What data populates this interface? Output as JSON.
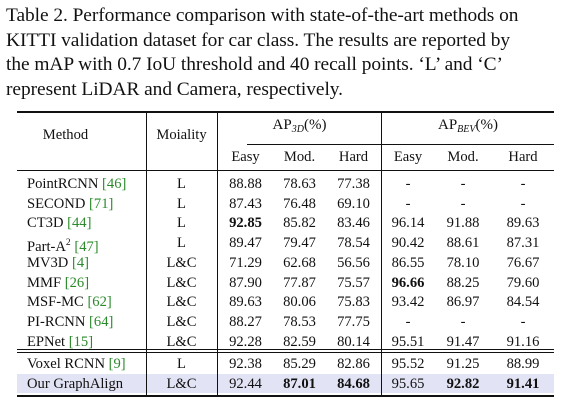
{
  "caption": {
    "lines": [
      "Table 2. Performance comparison with state-of-the-art methods on",
      "KITTI validation dataset for car class. The results are reported by",
      "the mAP with 0.7 IoU threshold and 40 recall points. ‘L’ and ‘C’",
      "represent LiDAR and Camera, respectively."
    ]
  },
  "table": {
    "headers": {
      "method": "Method",
      "modality": "Moiality",
      "ap3d_main": "AP",
      "ap3d_sub": "3D",
      "ap3d_unit": "(%)",
      "apbev_main": "AP",
      "apbev_sub": "BEV",
      "apbev_unit": "(%)",
      "sub_columns": [
        "Easy",
        "Mod.",
        "Hard",
        "Easy",
        "Mod.",
        "Hard"
      ]
    },
    "group1": [
      {
        "name": "PointRCNN",
        "cite": "[46]",
        "modality": "L",
        "values": [
          "88.88",
          "78.63",
          "77.38",
          "-",
          "-",
          "-"
        ],
        "bold": []
      },
      {
        "name": "SECOND",
        "cite": "[71]",
        "modality": "L",
        "values": [
          "87.43",
          "76.48",
          "69.10",
          "-",
          "-",
          "-"
        ],
        "bold": []
      },
      {
        "name": "CT3D",
        "cite": "[44]",
        "modality": "L",
        "values": [
          "92.85",
          "85.82",
          "83.46",
          "96.14",
          "91.88",
          "89.63"
        ],
        "bold": [
          0
        ]
      },
      {
        "name": "Part-A",
        "name_sup": "2",
        "cite": "[47]",
        "modality": "L",
        "values": [
          "89.47",
          "79.47",
          "78.54",
          "90.42",
          "88.61",
          "87.31"
        ],
        "bold": []
      },
      {
        "name": "MV3D",
        "cite": "[4]",
        "modality": "L&C",
        "values": [
          "71.29",
          "62.68",
          "56.56",
          "86.55",
          "78.10",
          "76.67"
        ],
        "bold": []
      },
      {
        "name": "MMF",
        "cite": "[26]",
        "modality": "L&C",
        "values": [
          "87.90",
          "77.87",
          "75.57",
          "96.66",
          "88.25",
          "79.60"
        ],
        "bold": [
          3
        ]
      },
      {
        "name": "MSF-MC",
        "cite": "[62]",
        "modality": "L&C",
        "values": [
          "89.63",
          "80.06",
          "75.83",
          "93.42",
          "86.97",
          "84.54"
        ],
        "bold": []
      },
      {
        "name": "PI-RCNN",
        "cite": "[64]",
        "modality": "L&C",
        "values": [
          "88.27",
          "78.53",
          "77.75",
          "-",
          "-",
          "-"
        ],
        "bold": []
      },
      {
        "name": "EPNet",
        "cite": "[15]",
        "modality": "L&C",
        "values": [
          "92.28",
          "82.59",
          "80.14",
          "95.51",
          "91.47",
          "91.16"
        ],
        "bold": []
      }
    ],
    "group2": [
      {
        "name": "Voxel RCNN",
        "cite": "[9]",
        "modality": "L",
        "values": [
          "92.38",
          "85.29",
          "82.86",
          "95.52",
          "91.25",
          "88.99"
        ],
        "bold": []
      },
      {
        "name": "Our GraphAlign",
        "cite": "",
        "modality": "L&C",
        "values": [
          "92.44",
          "87.01",
          "84.68",
          "95.65",
          "92.82",
          "91.41"
        ],
        "bold": [
          1,
          2,
          4,
          5
        ]
      }
    ]
  },
  "colors": {
    "citation": "#2b8a2b",
    "highlight_row": "#e2e3f4",
    "text": "#111111"
  }
}
